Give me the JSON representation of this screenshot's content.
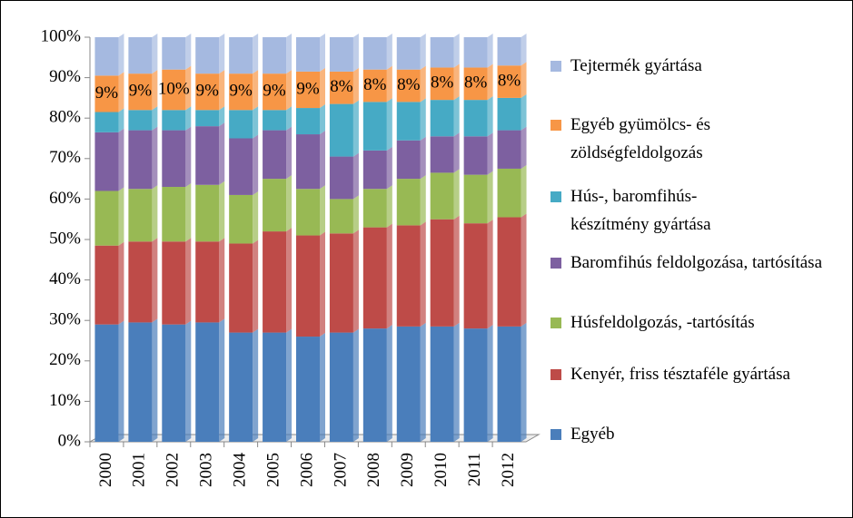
{
  "chart_data": {
    "type": "stacked_bar",
    "categories": [
      "2000",
      "2001",
      "2002",
      "2003",
      "2004",
      "2005",
      "2006",
      "2007",
      "2008",
      "2009",
      "2010",
      "2011",
      "2012"
    ],
    "ylim": [
      0,
      100
    ],
    "yticks": [
      {
        "value": 0,
        "label": "0%"
      },
      {
        "value": 10,
        "label": "10%"
      },
      {
        "value": 20,
        "label": "20%"
      },
      {
        "value": 30,
        "label": "30%"
      },
      {
        "value": 40,
        "label": "40%"
      },
      {
        "value": 50,
        "label": "50%"
      },
      {
        "value": 60,
        "label": "60%"
      },
      {
        "value": 70,
        "label": "70%"
      },
      {
        "value": 80,
        "label": "80%"
      },
      {
        "value": 90,
        "label": "90%"
      },
      {
        "value": 100,
        "label": "100%"
      }
    ],
    "grid": false,
    "legend": "right",
    "series": [
      {
        "name": "Egyéb",
        "color": "#4a7ebb",
        "values": [
          29,
          29.5,
          29,
          29.5,
          27,
          27,
          26,
          27,
          28,
          28.5,
          28.5,
          28,
          28.5
        ]
      },
      {
        "name": "Kenyér, friss tésztaféle gyártása",
        "color": "#be4b48",
        "values": [
          19.5,
          20,
          20.5,
          20,
          22,
          25,
          25,
          24.5,
          25,
          25,
          26.5,
          26,
          27
        ]
      },
      {
        "name": "Húsfeldolgozás, -tartósítás",
        "color": "#98b954",
        "values": [
          13.5,
          13,
          13.5,
          14,
          12,
          13,
          11.5,
          8.5,
          9.5,
          11.5,
          11.5,
          12,
          12
        ]
      },
      {
        "name": "Baromfihús feldolgozása, tartósítása",
        "color": "#7d60a0",
        "values": [
          14.5,
          14.5,
          14,
          14.5,
          14,
          12,
          13.5,
          10.5,
          9.5,
          9.5,
          9,
          9.5,
          9.5
        ]
      },
      {
        "name": "Hús-, baromfihús-készítmény gyártása",
        "color": "#46aac5",
        "values": [
          5,
          5,
          5,
          4,
          7,
          5,
          6.5,
          13,
          12,
          9.5,
          9,
          9,
          8
        ]
      },
      {
        "name": "Egyéb gyümölcs- és zöldségfeldolgozás",
        "color": "#f79646",
        "values": [
          9,
          9,
          10,
          9,
          9,
          9,
          9,
          8,
          8,
          8,
          8,
          8,
          8
        ],
        "value_labels": [
          "9%",
          "9%",
          "10%",
          "9%",
          "9%",
          "9%",
          "9%",
          "8%",
          "8%",
          "8%",
          "8%",
          "8%",
          "8%"
        ]
      },
      {
        "name": "Tejtermék gyártása",
        "color": "#a5b9e0",
        "values": [
          9.5,
          9,
          8,
          9,
          9,
          9,
          8.5,
          8.5,
          8,
          8,
          7.5,
          7.5,
          7
        ]
      }
    ]
  }
}
